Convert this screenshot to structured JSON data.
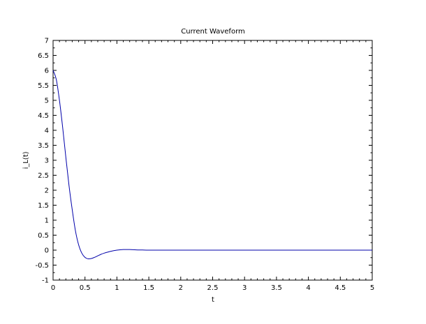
{
  "chart_data": {
    "type": "line",
    "title": "Current Waveform",
    "xlabel": "t",
    "ylabel": "i_L(t)",
    "xlim": [
      0,
      5
    ],
    "ylim": [
      -1,
      7
    ],
    "grid": false,
    "x_ticks": [
      0,
      0.5,
      1,
      1.5,
      2,
      2.5,
      3,
      3.5,
      4,
      4.5,
      5
    ],
    "x_tick_labels": [
      "0",
      "0.5",
      "1",
      "1.5",
      "2",
      "2.5",
      "3",
      "3.5",
      "4",
      "4.5",
      "5"
    ],
    "y_ticks": [
      -1,
      -0.5,
      0,
      0.5,
      1,
      1.5,
      2,
      2.5,
      3,
      3.5,
      4,
      4.5,
      5,
      5.5,
      6,
      6.5,
      7
    ],
    "y_tick_labels": [
      "-1",
      "-0.5",
      "0",
      "0.5",
      "1",
      "1.5",
      "2",
      "2.5",
      "3",
      "3.5",
      "4",
      "4.5",
      "5",
      "5.5",
      "6",
      "6.5",
      "7"
    ],
    "series": [
      {
        "color": "#0000aa",
        "x": [
          0,
          0.05,
          0.1,
          0.15,
          0.2,
          0.25,
          0.3,
          0.35,
          0.4,
          0.45,
          0.5,
          0.55,
          0.6,
          0.65,
          0.7,
          0.75,
          0.8,
          0.9,
          1.0,
          1.1,
          1.2,
          1.3,
          1.4,
          1.5,
          1.75,
          2,
          2.5,
          3,
          3.5,
          4,
          4.5,
          5
        ],
        "y": [
          6.0,
          5.7,
          5.0,
          4.1,
          3.1,
          2.15,
          1.35,
          0.65,
          0.18,
          -0.1,
          -0.24,
          -0.29,
          -0.28,
          -0.24,
          -0.19,
          -0.14,
          -0.1,
          -0.04,
          0.0,
          0.02,
          0.02,
          0.01,
          0.005,
          0.0,
          0.0,
          0.0,
          0.0,
          0.0,
          0.0,
          0.0,
          0.0,
          0.0
        ]
      }
    ]
  }
}
